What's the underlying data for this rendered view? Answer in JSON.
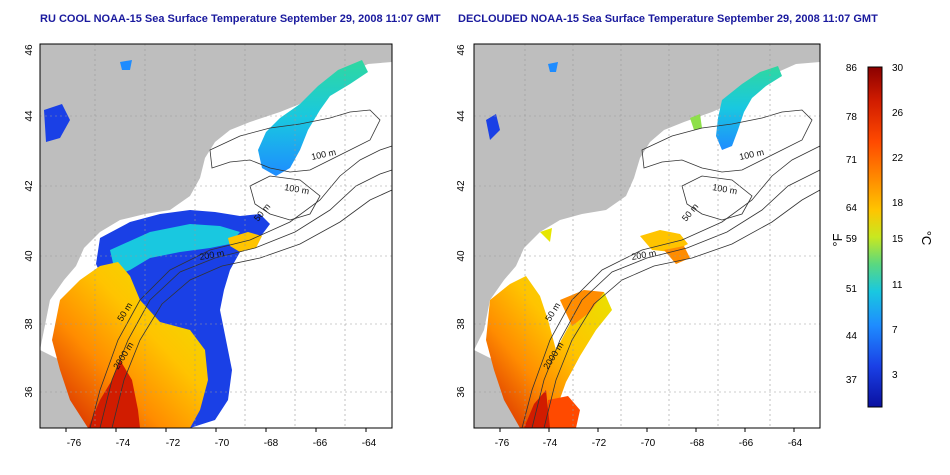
{
  "left_panel": {
    "title": "RU COOL NOAA-15 Sea Surface Temperature September 29, 2008 11:07 GMT",
    "x_ticks": [
      "-76",
      "-74",
      "-72",
      "-70",
      "-68",
      "-66",
      "-64"
    ],
    "y_ticks": [
      "36",
      "38",
      "40",
      "42",
      "44",
      "46"
    ],
    "contour_labels": [
      "100 m",
      "100 m",
      "50 m",
      "200 m",
      "50 m",
      "2000 m"
    ]
  },
  "right_panel": {
    "title": "DECLOUDED NOAA-15 Sea Surface Temperature September 29, 2008 11:07 GMT",
    "x_ticks": [
      "-76",
      "-74",
      "-72",
      "-70",
      "-68",
      "-66",
      "-64"
    ],
    "y_ticks": [
      "36",
      "38",
      "40",
      "42",
      "44",
      "46"
    ],
    "contour_labels": [
      "100 m",
      "100 m",
      "50 m",
      "200 m",
      "50 m",
      "2000 m"
    ]
  },
  "colorbar": {
    "f_label": "°F",
    "c_label": "°C",
    "f_ticks": [
      "86",
      "78",
      "71",
      "64",
      "59",
      "51",
      "44",
      "37"
    ],
    "c_ticks": [
      "30",
      "26",
      "22",
      "18",
      "15",
      "11",
      "7",
      "3"
    ],
    "colors": [
      "#8b0000",
      "#d11c00",
      "#ff4a00",
      "#ff8c00",
      "#ffc400",
      "#e6e600",
      "#8ee04a",
      "#2fd8a0",
      "#19c8e0",
      "#1e8cff",
      "#1a40e6",
      "#0a10a0"
    ]
  },
  "land_color": "#bebebe"
}
